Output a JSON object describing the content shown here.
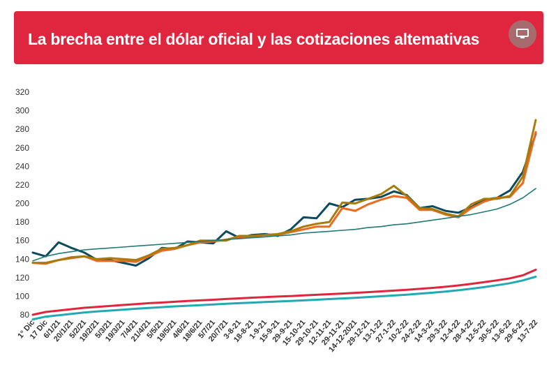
{
  "header": {
    "title": "La brecha entre el dólar oficial y las cotizaciones altemativas",
    "color": "#e0263f",
    "screen_icon": "monitor-icon"
  },
  "chart_data": {
    "type": "line",
    "title": "La brecha entre el dólar oficial y las cotizaciones altemativas",
    "xlabel": "",
    "ylabel": "",
    "ylim": [
      80,
      320
    ],
    "yticks": [
      80,
      100,
      120,
      140,
      160,
      180,
      200,
      220,
      240,
      260,
      280,
      300,
      320
    ],
    "grid": false,
    "legend": "none",
    "x": [
      "1° Dic",
      "17 Dic",
      "6/1/21",
      "20/1/21",
      "5/2/21",
      "19/2/21",
      "5/3/21",
      "19/3/21",
      "7/4/21",
      "21/4/21",
      "5/5/21",
      "19/5/21",
      "4/6/21",
      "18/6/21",
      "5/7/21",
      "20/7/21",
      "3-8-21",
      "18-8-21",
      "1-9-21",
      "15-9-21",
      "29-9-21",
      "15-10-21",
      "29-10-21",
      "12-11-21",
      "29-11-21",
      "14-12-2021",
      "29-12-21",
      "13-1-22",
      "27-1-22",
      "10-2-22",
      "24-2-22",
      "14-3-22",
      "29-3-22",
      "12-4-22",
      "28-4-22",
      "12-5-22",
      "30-5-22",
      "13-6-22",
      "29-6-22",
      "13-7-22"
    ],
    "series": [
      {
        "color": "#0e4a5e",
        "values": [
          147,
          143,
          158,
          152,
          147,
          139,
          139,
          136,
          133,
          141,
          152,
          151,
          159,
          158,
          157,
          170,
          163,
          166,
          167,
          165,
          172,
          185,
          184,
          200,
          196,
          204,
          205,
          207,
          213,
          209,
          195,
          197,
          192,
          190,
          196,
          204,
          206,
          214,
          234,
          275
        ]
      },
      {
        "color": "#ee6a1e",
        "values": [
          136,
          135,
          139,
          141,
          143,
          138,
          138,
          138,
          137,
          143,
          149,
          151,
          155,
          158,
          159,
          161,
          164,
          164,
          166,
          166,
          169,
          172,
          175,
          175,
          195,
          192,
          199,
          204,
          208,
          206,
          193,
          193,
          188,
          185,
          195,
          202,
          206,
          207,
          222,
          277
        ]
      },
      {
        "color": "#a77c0d",
        "values": [
          136,
          136,
          139,
          142,
          143,
          140,
          141,
          140,
          139,
          144,
          151,
          152,
          155,
          160,
          160,
          160,
          165,
          165,
          166,
          167,
          170,
          175,
          178,
          180,
          201,
          200,
          205,
          210,
          219,
          208,
          195,
          194,
          189,
          186,
          199,
          205,
          205,
          208,
          229,
          290
        ]
      },
      {
        "color": "#1f7a74",
        "values": [
          138,
          143,
          146,
          148,
          150,
          151,
          152,
          153,
          154,
          155,
          156,
          157,
          158,
          159,
          160,
          161,
          162,
          163,
          164,
          165,
          166,
          168,
          169,
          170,
          171,
          172,
          174,
          175,
          177,
          178,
          180,
          182,
          184,
          186,
          188,
          191,
          194,
          199,
          206,
          216
        ]
      },
      {
        "color": "#e0263f",
        "values": [
          80,
          83,
          84.5,
          86,
          87.5,
          88.5,
          89.5,
          90.5,
          91.5,
          92.5,
          93.2,
          94,
          94.8,
          95.5,
          96.2,
          97,
          97.7,
          98.4,
          99,
          99.6,
          100.2,
          100.9,
          101.5,
          102.2,
          102.9,
          103.6,
          104.4,
          105.2,
          106,
          106.9,
          107.9,
          109,
          110.2,
          111.6,
          113.3,
          115.1,
          117.1,
          119.3,
          122.5,
          128.5
        ]
      },
      {
        "color": "#23a9b3",
        "values": [
          75,
          78,
          79.5,
          81,
          82.5,
          83.5,
          84.5,
          85.5,
          86.5,
          87.4,
          88.2,
          89,
          89.7,
          90.4,
          91.1,
          91.8,
          92.5,
          93.1,
          93.7,
          94.3,
          94.9,
          95.5,
          96.2,
          96.9,
          97.6,
          98.3,
          99.1,
          99.9,
          100.8,
          101.7,
          102.7,
          103.8,
          105,
          106.4,
          108,
          109.8,
          111.8,
          114,
          117,
          121
        ]
      }
    ]
  }
}
